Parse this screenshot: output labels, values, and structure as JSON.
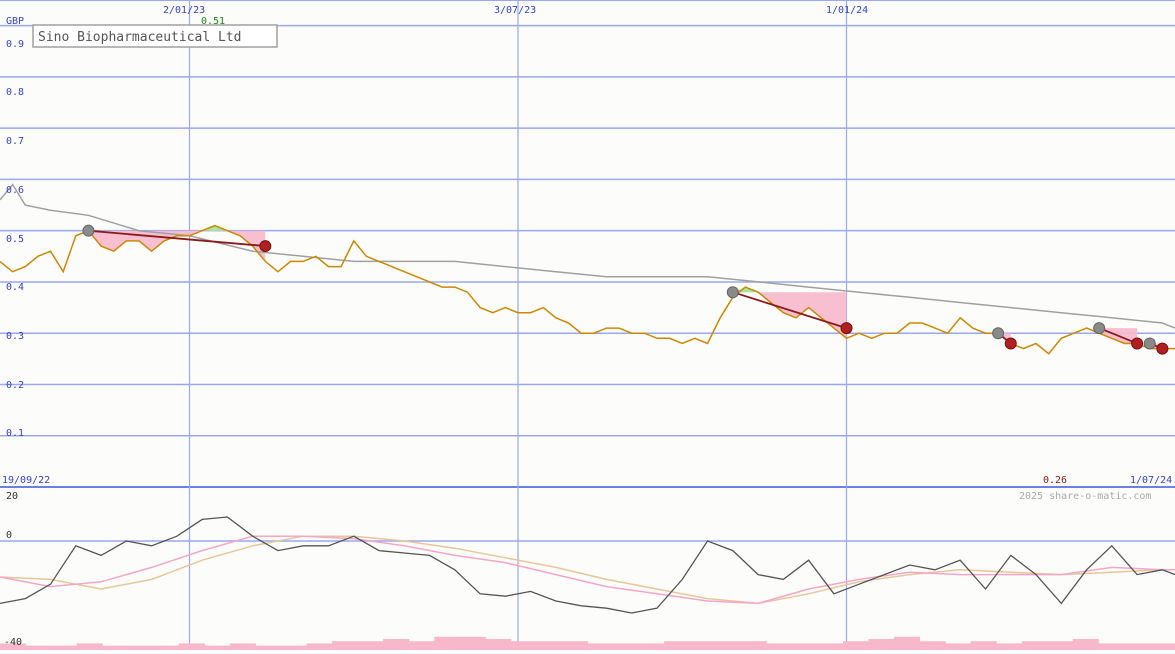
{
  "chart_data": [
    {
      "type": "line",
      "title": "Sino Biopharmaceutical Ltd",
      "currency": "GBP",
      "ylim": [
        0,
        0.95
      ],
      "yticks": [
        "0.9",
        "0.8",
        "0.7",
        "0.6",
        "0.5",
        "0.4",
        "0.3",
        "0.2",
        "0.1"
      ],
      "x_start_label": "19/09/22",
      "x_end_label": "1/07/24",
      "date_labels": [
        {
          "label": "2/01/23",
          "date": "2023-01-02"
        },
        {
          "label": "3/07/23",
          "date": "2023-07-03"
        },
        {
          "label": "1/01/24",
          "date": "2024-01-01"
        }
      ],
      "x_domain": [
        "2022-09-19",
        "2024-07-01"
      ],
      "high_label": "0.51",
      "low_label": "0.26",
      "colors": {
        "price": "#cc8800",
        "average": "#a0a0a0",
        "grid": "#9aa8ee",
        "loss_fill": "#f7b8cc",
        "gain_fill": "#a8e69a",
        "trade_line": "#8b1a1a"
      },
      "series": [
        {
          "role": "price",
          "x": [
            "2022-09-19",
            "2022-09-26",
            "2022-10-03",
            "2022-10-10",
            "2022-10-17",
            "2022-10-24",
            "2022-10-31",
            "2022-11-07",
            "2022-11-14",
            "2022-11-21",
            "2022-11-28",
            "2022-12-05",
            "2022-12-12",
            "2022-12-19",
            "2022-12-26",
            "2023-01-02",
            "2023-01-09",
            "2023-01-16",
            "2023-01-23",
            "2023-01-30",
            "2023-02-06",
            "2023-02-13",
            "2023-02-20",
            "2023-02-27",
            "2023-03-06",
            "2023-03-13",
            "2023-03-20",
            "2023-03-27",
            "2023-04-03",
            "2023-04-10",
            "2023-04-17",
            "2023-04-24",
            "2023-05-01",
            "2023-05-08",
            "2023-05-15",
            "2023-05-22",
            "2023-05-29",
            "2023-06-05",
            "2023-06-12",
            "2023-06-19",
            "2023-06-26",
            "2023-07-03",
            "2023-07-10",
            "2023-07-17",
            "2023-07-24",
            "2023-07-31",
            "2023-08-07",
            "2023-08-14",
            "2023-08-21",
            "2023-08-28",
            "2023-09-04",
            "2023-09-11",
            "2023-09-18",
            "2023-09-25",
            "2023-10-02",
            "2023-10-09",
            "2023-10-16",
            "2023-10-23",
            "2023-10-30",
            "2023-11-06",
            "2023-11-13",
            "2023-11-20",
            "2023-11-27",
            "2023-12-04",
            "2023-12-11",
            "2023-12-18",
            "2023-12-25",
            "2024-01-01",
            "2024-01-08",
            "2024-01-15",
            "2024-01-22",
            "2024-01-29",
            "2024-02-05",
            "2024-02-12",
            "2024-02-19",
            "2024-02-26",
            "2024-03-04",
            "2024-03-11",
            "2024-03-18",
            "2024-03-25",
            "2024-04-01",
            "2024-04-08",
            "2024-04-15",
            "2024-04-22",
            "2024-04-29",
            "2024-05-06",
            "2024-05-13",
            "2024-05-20",
            "2024-05-27",
            "2024-06-03",
            "2024-06-10",
            "2024-06-17",
            "2024-06-24",
            "2024-07-01"
          ],
          "values": [
            0.44,
            0.42,
            0.43,
            0.45,
            0.46,
            0.42,
            0.49,
            0.5,
            0.47,
            0.46,
            0.48,
            0.48,
            0.46,
            0.48,
            0.49,
            0.49,
            0.5,
            0.51,
            0.5,
            0.49,
            0.47,
            0.44,
            0.42,
            0.44,
            0.44,
            0.45,
            0.43,
            0.43,
            0.48,
            0.45,
            0.44,
            0.43,
            0.42,
            0.41,
            0.4,
            0.39,
            0.39,
            0.38,
            0.35,
            0.34,
            0.35,
            0.34,
            0.34,
            0.35,
            0.33,
            0.32,
            0.3,
            0.3,
            0.31,
            0.31,
            0.3,
            0.3,
            0.29,
            0.29,
            0.28,
            0.29,
            0.28,
            0.33,
            0.37,
            0.39,
            0.38,
            0.36,
            0.34,
            0.33,
            0.35,
            0.33,
            0.31,
            0.29,
            0.3,
            0.29,
            0.3,
            0.3,
            0.32,
            0.32,
            0.31,
            0.3,
            0.33,
            0.31,
            0.3,
            0.3,
            0.28,
            0.27,
            0.28,
            0.26,
            0.29,
            0.3,
            0.31,
            0.3,
            0.29,
            0.28,
            0.28,
            0.27,
            0.27,
            0.27
          ]
        },
        {
          "role": "moving-average",
          "x": [
            "2022-09-19",
            "2022-09-26",
            "2022-10-03",
            "2022-10-17",
            "2022-11-07",
            "2022-12-05",
            "2023-01-02",
            "2023-02-06",
            "2023-03-06",
            "2023-04-03",
            "2023-05-01",
            "2023-05-29",
            "2023-06-26",
            "2023-07-24",
            "2023-08-21",
            "2023-09-18",
            "2023-10-16",
            "2023-11-13",
            "2023-12-11",
            "2024-01-08",
            "2024-02-05",
            "2024-03-04",
            "2024-04-01",
            "2024-04-29",
            "2024-05-27",
            "2024-06-24",
            "2024-07-01"
          ],
          "values": [
            0.56,
            0.59,
            0.55,
            0.54,
            0.53,
            0.5,
            0.49,
            0.46,
            0.45,
            0.44,
            0.44,
            0.44,
            0.43,
            0.42,
            0.41,
            0.41,
            0.41,
            0.4,
            0.39,
            0.38,
            0.37,
            0.36,
            0.35,
            0.34,
            0.33,
            0.32,
            0.31
          ]
        }
      ],
      "trades": [
        {
          "buy": {
            "x": "2022-11-07",
            "y": 0.5
          },
          "sell": {
            "x": "2023-02-13",
            "y": 0.47
          }
        },
        {
          "buy": {
            "x": "2023-10-30",
            "y": 0.38
          },
          "sell": {
            "x": "2024-01-01",
            "y": 0.31
          }
        },
        {
          "buy": {
            "x": "2024-03-25",
            "y": 0.3
          },
          "sell": {
            "x": "2024-04-01",
            "y": 0.28
          }
        },
        {
          "buy": {
            "x": "2024-05-20",
            "y": 0.31
          },
          "sell": {
            "x": "2024-06-10",
            "y": 0.28
          }
        },
        {
          "buy": {
            "x": "2024-06-17",
            "y": 0.28
          },
          "sell": {
            "x": "2024-06-24",
            "y": 0.27
          }
        }
      ]
    },
    {
      "type": "line",
      "ylim": [
        -40,
        25
      ],
      "yticks": [
        "20",
        "0",
        "-40"
      ],
      "credit": "2025 share-o-matic.com",
      "x_domain": [
        "2022-09-19",
        "2024-07-01"
      ],
      "colors": {
        "oscillator": "#555555",
        "signal_fast": "#f4a6c8",
        "signal_slow": "#e6c79a",
        "volume": "#f7b8cc"
      },
      "series": [
        {
          "role": "oscillator",
          "x": [
            "2022-09-19",
            "2022-10-03",
            "2022-10-17",
            "2022-10-31",
            "2022-11-14",
            "2022-11-28",
            "2022-12-12",
            "2022-12-26",
            "2023-01-09",
            "2023-01-23",
            "2023-02-06",
            "2023-02-20",
            "2023-03-06",
            "2023-03-20",
            "2023-04-03",
            "2023-04-17",
            "2023-05-01",
            "2023-05-15",
            "2023-05-29",
            "2023-06-12",
            "2023-06-26",
            "2023-07-10",
            "2023-07-24",
            "2023-08-07",
            "2023-08-21",
            "2023-09-04",
            "2023-09-18",
            "2023-10-02",
            "2023-10-16",
            "2023-10-30",
            "2023-11-13",
            "2023-11-27",
            "2023-12-11",
            "2023-12-25",
            "2024-01-08",
            "2024-01-22",
            "2024-02-05",
            "2024-02-19",
            "2024-03-04",
            "2024-03-18",
            "2024-04-01",
            "2024-04-15",
            "2024-04-29",
            "2024-05-13",
            "2024-05-27",
            "2024-06-10",
            "2024-06-24",
            "2024-07-01"
          ],
          "values": [
            -26,
            -24,
            -18,
            -2,
            -6,
            0,
            -2,
            2,
            9,
            10,
            2,
            -4,
            -2,
            -2,
            2,
            -4,
            -5,
            -6,
            -12,
            -22,
            -23,
            -21,
            -25,
            -27,
            -28,
            -30,
            -28,
            -16,
            0,
            -4,
            -14,
            -16,
            -8,
            -22,
            -18,
            -14,
            -10,
            -12,
            -8,
            -20,
            -6,
            -14,
            -26,
            -12,
            -2,
            -14,
            -12,
            -14
          ]
        },
        {
          "role": "signal-fast",
          "x": [
            "2022-09-19",
            "2022-10-17",
            "2022-11-14",
            "2022-12-12",
            "2023-01-09",
            "2023-02-06",
            "2023-03-06",
            "2023-04-03",
            "2023-05-01",
            "2023-05-29",
            "2023-06-26",
            "2023-07-24",
            "2023-08-21",
            "2023-09-18",
            "2023-10-16",
            "2023-11-13",
            "2023-12-11",
            "2024-01-08",
            "2024-02-05",
            "2024-03-04",
            "2024-04-01",
            "2024-04-29",
            "2024-05-27",
            "2024-06-24",
            "2024-07-01"
          ],
          "values": [
            -15,
            -19,
            -17,
            -11,
            -4,
            2,
            2,
            1,
            -2,
            -6,
            -9,
            -14,
            -19,
            -22,
            -25,
            -26,
            -20,
            -16,
            -13,
            -14,
            -14,
            -14,
            -11,
            -12,
            -12
          ]
        },
        {
          "role": "signal-slow",
          "x": [
            "2022-09-19",
            "2022-10-17",
            "2022-11-14",
            "2022-12-12",
            "2023-01-09",
            "2023-02-06",
            "2023-03-06",
            "2023-04-03",
            "2023-05-01",
            "2023-05-29",
            "2023-06-26",
            "2023-07-24",
            "2023-08-21",
            "2023-09-18",
            "2023-10-16",
            "2023-11-13",
            "2023-12-11",
            "2024-01-08",
            "2024-02-05",
            "2024-03-04",
            "2024-04-01",
            "2024-04-29",
            "2024-05-27",
            "2024-06-24",
            "2024-07-01"
          ],
          "values": [
            -15,
            -16,
            -20,
            -16,
            -8,
            -2,
            2,
            2,
            0,
            -3,
            -7,
            -11,
            -16,
            -20,
            -24,
            -26,
            -22,
            -17,
            -14,
            -12,
            -13,
            -14,
            -13,
            -12,
            -12
          ]
        }
      ],
      "volume": [
        3,
        2,
        2,
        3,
        2,
        2,
        2,
        3,
        2,
        3,
        2,
        2,
        3,
        4,
        4,
        5,
        4,
        6,
        6,
        5,
        4,
        4,
        4,
        3,
        3,
        3,
        4,
        4,
        4,
        4,
        3,
        3,
        3,
        4,
        5,
        6,
        4,
        3,
        4,
        3,
        4,
        4,
        5,
        3,
        3,
        3
      ]
    }
  ]
}
